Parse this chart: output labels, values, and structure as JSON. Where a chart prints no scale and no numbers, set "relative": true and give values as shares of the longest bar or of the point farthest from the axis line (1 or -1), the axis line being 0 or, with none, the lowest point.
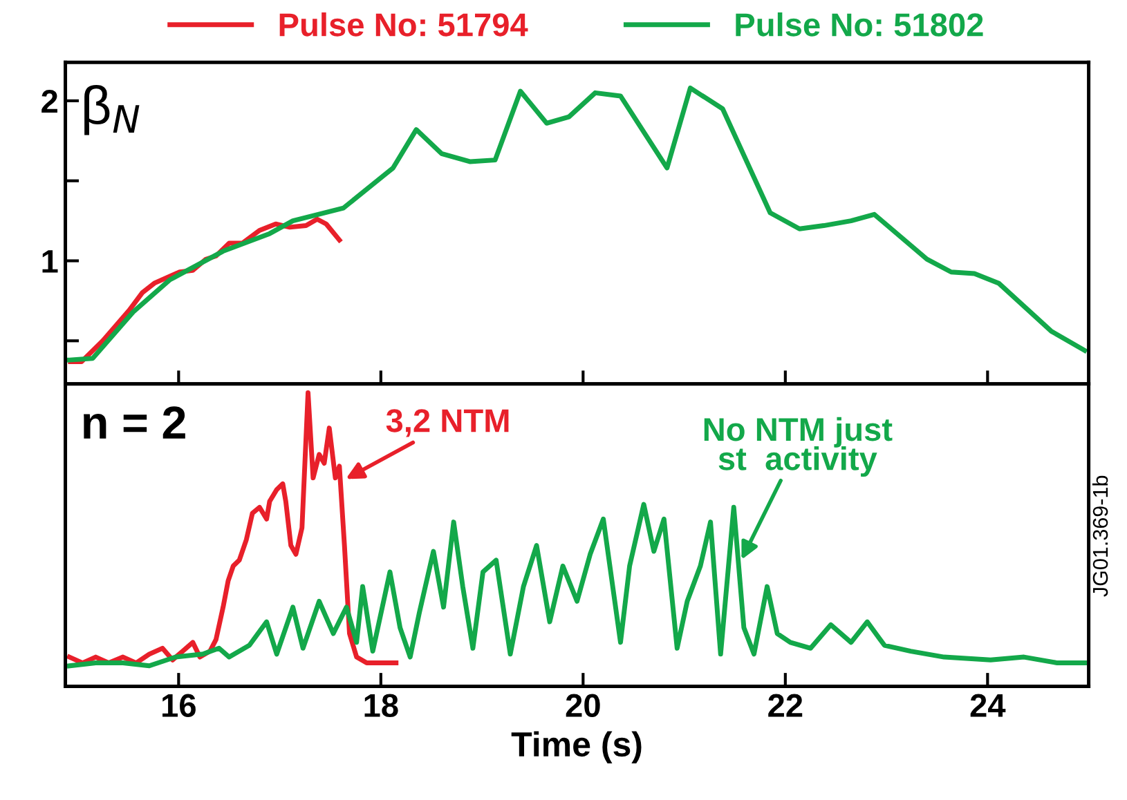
{
  "chart_data": [
    {
      "type": "line",
      "ylabel": "β$_{N}$",
      "legend": "top",
      "tick_labels": "y",
      "xlim": [
        14.88,
        25.0
      ],
      "ylim": [
        0.23,
        2.24
      ],
      "yticks": [
        {
          "value": 0.5,
          "label": null
        },
        1,
        {
          "value": 1.5,
          "label": null
        },
        2
      ],
      "xticks": [
        16,
        18,
        20,
        22,
        24
      ],
      "series": [
        {
          "name": "Pulse No: 51794",
          "color": "#e8202a",
          "x": [
            14.93,
            15.04,
            15.25,
            15.51,
            15.64,
            15.76,
            16.01,
            16.14,
            16.27,
            16.37,
            16.5,
            16.63,
            16.8,
            16.96,
            17.1,
            17.26,
            17.37,
            17.46,
            17.59
          ],
          "values": [
            0.37,
            0.37,
            0.5,
            0.69,
            0.8,
            0.86,
            0.93,
            0.94,
            1.01,
            1.03,
            1.11,
            1.11,
            1.19,
            1.23,
            1.21,
            1.22,
            1.26,
            1.23,
            1.13
          ]
        },
        {
          "name": "Pulse No: 51802",
          "color": "#13a84a",
          "x": [
            14.92,
            15.15,
            15.55,
            15.91,
            16.44,
            16.9,
            17.13,
            17.63,
            18.12,
            18.35,
            18.6,
            18.88,
            19.13,
            19.38,
            19.64,
            19.86,
            20.12,
            20.37,
            20.83,
            21.06,
            21.38,
            21.85,
            22.14,
            22.38,
            22.65,
            22.88,
            23.4,
            23.64,
            23.87,
            24.11,
            24.63,
            24.96
          ],
          "values": [
            0.38,
            0.39,
            0.68,
            0.88,
            1.06,
            1.17,
            1.25,
            1.33,
            1.58,
            1.82,
            1.67,
            1.62,
            1.63,
            2.06,
            1.86,
            1.9,
            2.05,
            2.03,
            1.58,
            2.08,
            1.95,
            1.3,
            1.2,
            1.22,
            1.25,
            1.29,
            1.01,
            0.93,
            0.92,
            0.86,
            0.56,
            0.44
          ]
        }
      ]
    },
    {
      "type": "line",
      "ylabel": "n = 2",
      "xlabel": "Time (s)",
      "relative": true,
      "tick_labels": "x",
      "xlim": [
        14.88,
        25.0
      ],
      "xticks": [
        16,
        18,
        20,
        22,
        24
      ],
      "annotations": [
        {
          "text": "3,2 NTM",
          "x": 17.62,
          "y": 0.7
        },
        {
          "text": "No NTM just\nst  activity",
          "x": 21.55,
          "y": 0.42
        },
        "JG01.369-1b"
      ],
      "series": [
        {
          "color": "#e8202a",
          "x": [
            14.92,
            15.05,
            15.18,
            15.31,
            15.45,
            15.58,
            15.71,
            15.84,
            15.94,
            16.04,
            16.14,
            16.21,
            16.31,
            16.37,
            16.44,
            16.49,
            16.54,
            16.6,
            16.67,
            16.73,
            16.8,
            16.87,
            16.9,
            16.97,
            17.03,
            17.06,
            17.11,
            17.16,
            17.22,
            17.28,
            17.33,
            17.39,
            17.44,
            17.49,
            17.55,
            17.59,
            17.64,
            17.69,
            17.76,
            17.86,
            18.02,
            18.15
          ],
          "values": [
            0.1,
            0.08,
            0.1,
            0.08,
            0.1,
            0.08,
            0.11,
            0.13,
            0.09,
            0.12,
            0.15,
            0.1,
            0.12,
            0.16,
            0.27,
            0.36,
            0.41,
            0.43,
            0.5,
            0.59,
            0.61,
            0.57,
            0.63,
            0.67,
            0.69,
            0.63,
            0.48,
            0.45,
            0.54,
            1.0,
            0.71,
            0.79,
            0.76,
            0.88,
            0.71,
            0.75,
            0.48,
            0.18,
            0.1,
            0.08,
            0.08,
            0.08
          ]
        },
        {
          "color": "#13a84a",
          "x": [
            14.92,
            15.18,
            15.45,
            15.71,
            15.97,
            16.24,
            16.4,
            16.5,
            16.7,
            16.87,
            16.97,
            17.13,
            17.23,
            17.39,
            17.53,
            17.66,
            17.76,
            17.82,
            17.92,
            18.09,
            18.19,
            18.29,
            18.38,
            18.52,
            18.62,
            18.72,
            18.81,
            18.91,
            19.01,
            19.14,
            19.28,
            19.41,
            19.54,
            19.67,
            19.8,
            19.94,
            20.07,
            20.2,
            20.37,
            20.46,
            20.6,
            20.7,
            20.8,
            20.93,
            21.03,
            21.16,
            21.26,
            21.36,
            21.49,
            21.59,
            21.69,
            21.82,
            21.92,
            22.05,
            22.25,
            22.45,
            22.65,
            22.81,
            22.98,
            23.24,
            23.57,
            24.03,
            24.36,
            24.69,
            24.96
          ],
          "values": [
            0.07,
            0.08,
            0.08,
            0.07,
            0.1,
            0.11,
            0.13,
            0.1,
            0.14,
            0.22,
            0.11,
            0.27,
            0.13,
            0.29,
            0.18,
            0.27,
            0.15,
            0.34,
            0.12,
            0.39,
            0.2,
            0.1,
            0.25,
            0.46,
            0.27,
            0.56,
            0.34,
            0.13,
            0.39,
            0.43,
            0.11,
            0.34,
            0.48,
            0.22,
            0.41,
            0.29,
            0.45,
            0.57,
            0.15,
            0.41,
            0.62,
            0.46,
            0.57,
            0.13,
            0.29,
            0.41,
            0.56,
            0.11,
            0.61,
            0.2,
            0.11,
            0.34,
            0.18,
            0.15,
            0.13,
            0.21,
            0.15,
            0.22,
            0.14,
            0.12,
            0.1,
            0.09,
            0.1,
            0.08,
            0.08
          ]
        }
      ]
    }
  ]
}
